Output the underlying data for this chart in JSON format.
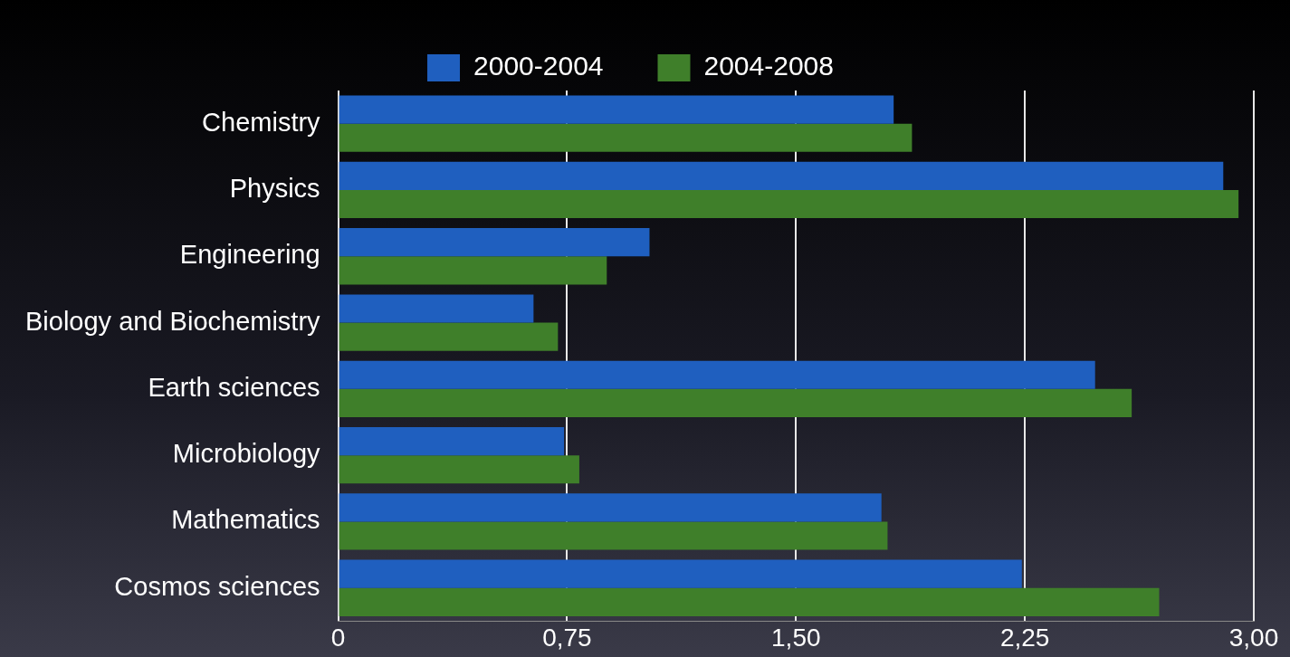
{
  "chart_data": {
    "type": "bar",
    "orientation": "horizontal",
    "categories": [
      "Chemistry",
      "Physics",
      "Engineering",
      "Biology and Biochemistry",
      "Earth sciences",
      "Microbiology",
      "Mathematics",
      "Cosmos sciences"
    ],
    "series": [
      {
        "name": "2000-2004",
        "color": "#1f5fbf",
        "values": [
          1.82,
          2.9,
          1.02,
          0.64,
          2.48,
          0.74,
          1.78,
          2.24
        ]
      },
      {
        "name": "2004-2008",
        "color": "#3f7f2a",
        "values": [
          1.88,
          2.95,
          0.88,
          0.72,
          2.6,
          0.79,
          1.8,
          2.69
        ]
      }
    ],
    "xlim": [
      0,
      3
    ],
    "xticks": [
      {
        "value": 0,
        "label": "0"
      },
      {
        "value": 0.75,
        "label": "0,75"
      },
      {
        "value": 1.5,
        "label": "1,50"
      },
      {
        "value": 2.25,
        "label": "2,25"
      },
      {
        "value": 3,
        "label": "3,00"
      }
    ],
    "grid": "x",
    "legend": "top"
  }
}
